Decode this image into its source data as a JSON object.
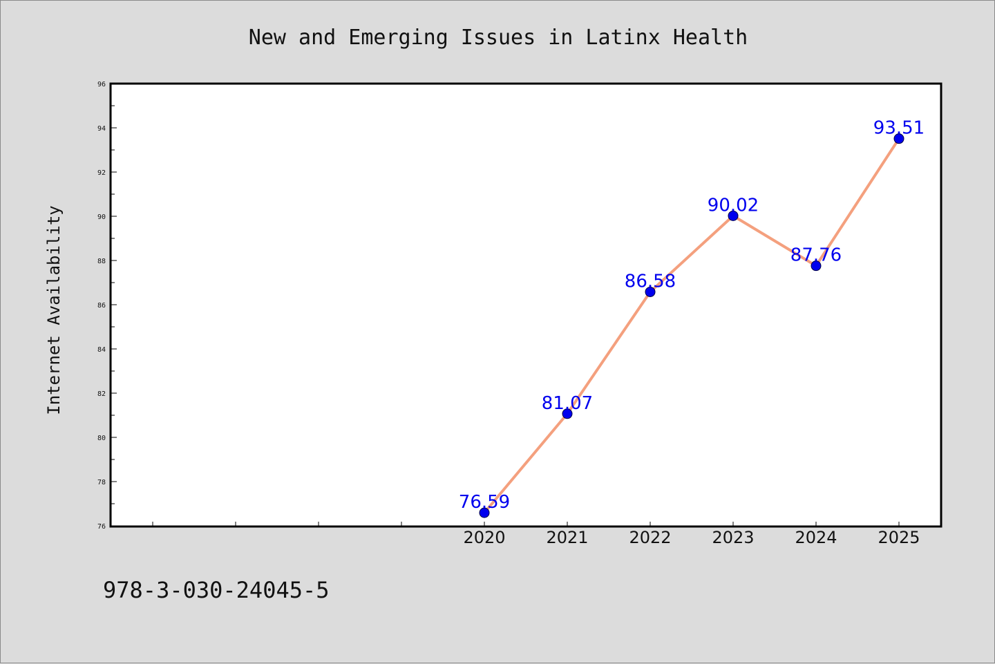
{
  "footer_text": "978-3-030-24045-5",
  "colors": {
    "background": "#dcdcdc",
    "plot_background": "#ffffff",
    "line": "#f4a07e",
    "marker": "#0000ee",
    "data_label": "#0000ee"
  },
  "chart_data": {
    "type": "line",
    "title": "New and Emerging Issues in Latinx Health",
    "xlabel": "",
    "ylabel": "Internet Availability",
    "x": [
      "2020",
      "2021",
      "2022",
      "2023",
      "2024",
      "2025"
    ],
    "series": [
      {
        "values": [
          76.59,
          81.07,
          86.58,
          90.02,
          87.76,
          93.51
        ]
      }
    ],
    "data_labels": [
      "76.59",
      "81.07",
      "86.58",
      "90.02",
      "87.76",
      "93.51"
    ],
    "ylim": [
      76,
      96
    ],
    "yticks": [
      "76",
      "78",
      "80",
      "82",
      "84",
      "86",
      "88",
      "90",
      "92",
      "94",
      "96"
    ],
    "grid": false,
    "legend": "none"
  }
}
